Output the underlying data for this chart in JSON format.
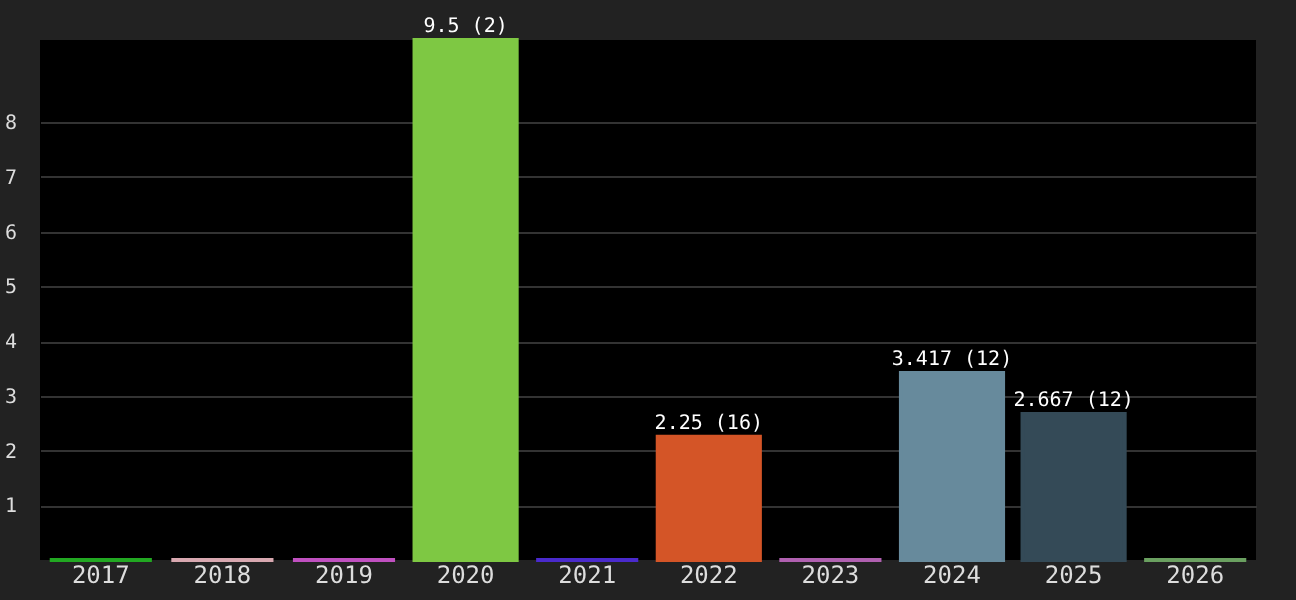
{
  "chart_data": {
    "type": "bar",
    "categories": [
      "2017",
      "2018",
      "2019",
      "2020",
      "2021",
      "2022",
      "2023",
      "2024",
      "2025",
      "2026"
    ],
    "values": [
      0,
      0,
      0,
      9.5,
      0,
      2.25,
      0,
      3.417,
      2.667,
      0
    ],
    "colors": [
      "#22a822",
      "#d8a8b0",
      "#c050c0",
      "#7ec843",
      "#4a2acc",
      "#d45527",
      "#b060b0",
      "#678a9c",
      "#344a57",
      "#6aa060"
    ],
    "value_labels": [
      null,
      null,
      null,
      "9.5 (2)",
      null,
      "2.25 (16)",
      null,
      "3.417 (12)",
      "2.667 (12)",
      null
    ],
    "ylim": [
      0,
      9.5
    ],
    "yticks": [
      1,
      2,
      3,
      4,
      5,
      6,
      7,
      8
    ],
    "grid": "y"
  }
}
